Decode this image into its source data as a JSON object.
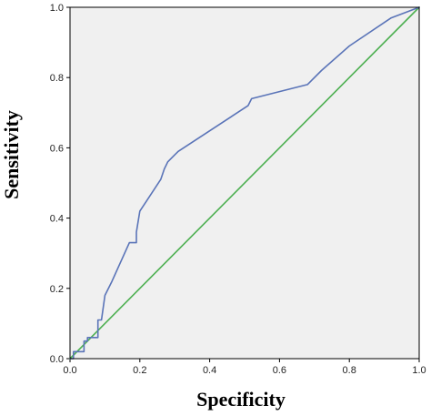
{
  "chart_data": {
    "type": "line",
    "title": "",
    "xlabel": "Specificity",
    "ylabel": "Sensitivity",
    "xlim": [
      0.0,
      1.0
    ],
    "ylim": [
      0.0,
      1.0
    ],
    "grid": false,
    "x_ticks": [
      "0.0",
      "0.2",
      "0.4",
      "0.6",
      "0.8",
      "1.0"
    ],
    "y_ticks": [
      "0.0",
      "0.2",
      "0.4",
      "0.6",
      "0.8",
      "1.0"
    ],
    "background_color": "#f0f0f0",
    "series": [
      {
        "color": "#5a74b8",
        "style": "step-line",
        "x": [
          0.0,
          0.01,
          0.01,
          0.04,
          0.04,
          0.05,
          0.05,
          0.08,
          0.08,
          0.09,
          0.1,
          0.12,
          0.17,
          0.19,
          0.19,
          0.2,
          0.22,
          0.26,
          0.27,
          0.28,
          0.3,
          0.31,
          0.51,
          0.52,
          0.68,
          0.72,
          0.8,
          0.92,
          1.0
        ],
        "y": [
          0.0,
          0.0,
          0.02,
          0.02,
          0.05,
          0.05,
          0.06,
          0.06,
          0.11,
          0.11,
          0.18,
          0.22,
          0.33,
          0.33,
          0.36,
          0.42,
          0.45,
          0.51,
          0.54,
          0.56,
          0.58,
          0.59,
          0.72,
          0.74,
          0.78,
          0.82,
          0.89,
          0.97,
          1.0
        ]
      },
      {
        "color": "#4caf50",
        "style": "reference-line",
        "x": [
          0.0,
          1.0
        ],
        "y": [
          0.0,
          1.0
        ]
      }
    ]
  }
}
